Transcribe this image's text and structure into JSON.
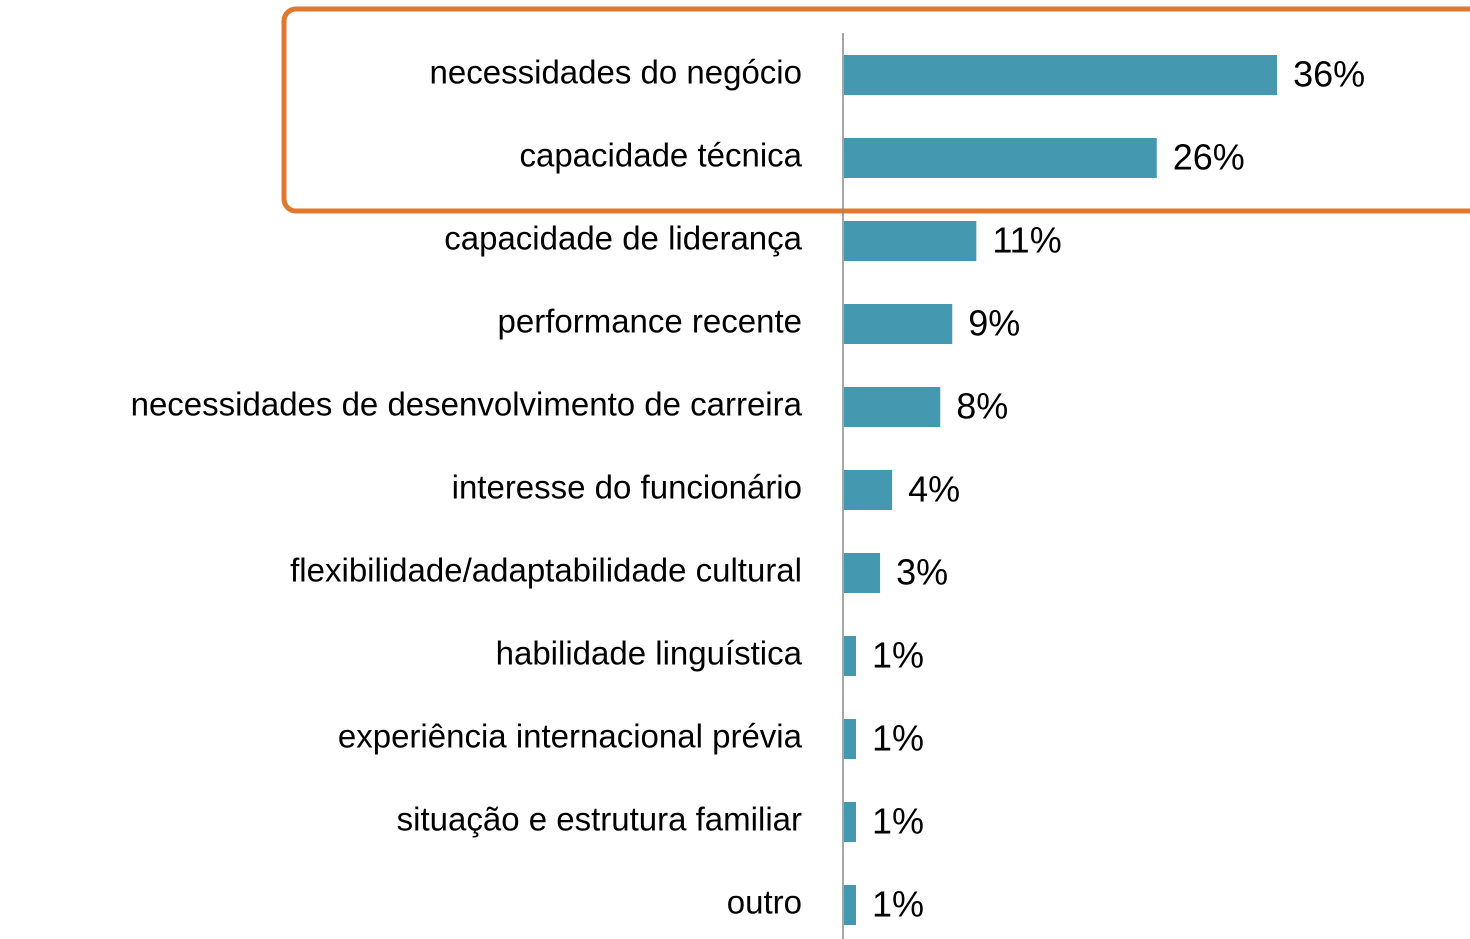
{
  "chart_data": {
    "type": "bar",
    "orientation": "horizontal",
    "categories": [
      "necessidades do negócio",
      "capacidade técnica",
      "capacidade de liderança",
      "performance recente",
      "necessidades de desenvolvimento de carreira",
      "interesse do funcionário",
      "flexibilidade/adaptabilidade cultural",
      "habilidade linguística",
      "experiência internacional prévia",
      "situação e estrutura familiar",
      "outro"
    ],
    "values": [
      36,
      26,
      11,
      9,
      8,
      4,
      3,
      1,
      1,
      1,
      1
    ],
    "value_labels": [
      "36%",
      "26%",
      "11%",
      "9%",
      "8%",
      "4%",
      "3%",
      "1%",
      "1%",
      "1%",
      "1%"
    ],
    "color": "#4499b1"
  }
}
